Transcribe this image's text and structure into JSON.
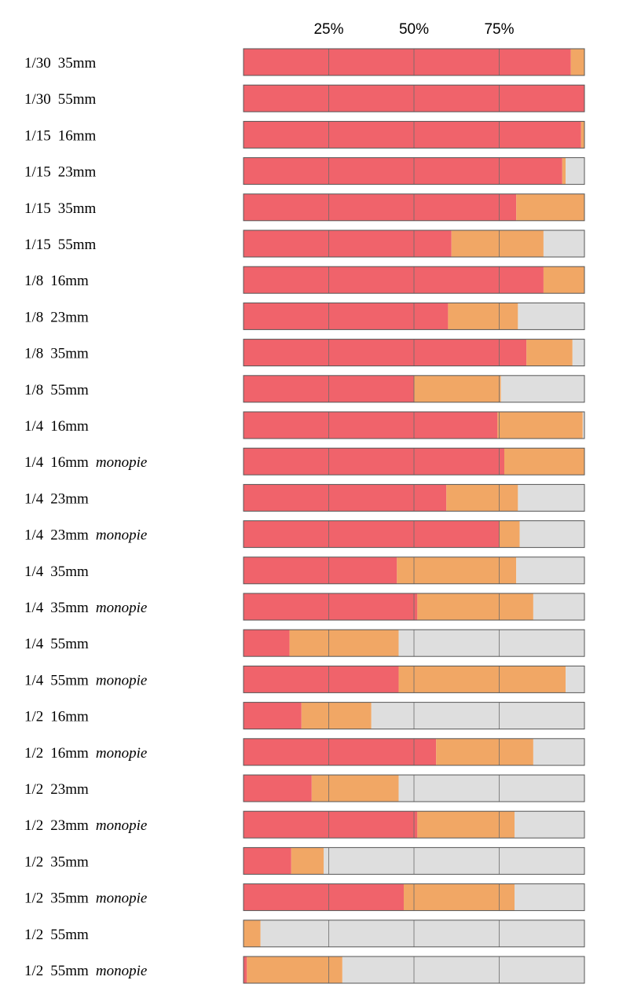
{
  "chart_data": {
    "type": "bar",
    "orientation": "horizontal",
    "stacked": true,
    "normalized_percent": true,
    "title": "",
    "xlabel": "",
    "ylabel": "",
    "xlim": [
      0,
      100
    ],
    "ticks": [
      {
        "value": 25,
        "label": "25%"
      },
      {
        "value": 50,
        "label": "50%"
      },
      {
        "value": 75,
        "label": "75%"
      }
    ],
    "series_colors": [
      "#f0636b",
      "#f1a765",
      "#dedede"
    ],
    "categories": [
      {
        "shutter": "1/30",
        "lens": "35mm",
        "note": ""
      },
      {
        "shutter": "1/30",
        "lens": "55mm",
        "note": ""
      },
      {
        "shutter": "1/15",
        "lens": "16mm",
        "note": ""
      },
      {
        "shutter": "1/15",
        "lens": "23mm",
        "note": ""
      },
      {
        "shutter": "1/15",
        "lens": "35mm",
        "note": ""
      },
      {
        "shutter": "1/15",
        "lens": "55mm",
        "note": ""
      },
      {
        "shutter": "1/8",
        "lens": "16mm",
        "note": ""
      },
      {
        "shutter": "1/8",
        "lens": "23mm",
        "note": ""
      },
      {
        "shutter": "1/8",
        "lens": "35mm",
        "note": ""
      },
      {
        "shutter": "1/8",
        "lens": "55mm",
        "note": ""
      },
      {
        "shutter": "1/4",
        "lens": "16mm",
        "note": ""
      },
      {
        "shutter": "1/4",
        "lens": "16mm",
        "note": "monopie"
      },
      {
        "shutter": "1/4",
        "lens": "23mm",
        "note": ""
      },
      {
        "shutter": "1/4",
        "lens": "23mm",
        "note": "monopie"
      },
      {
        "shutter": "1/4",
        "lens": "35mm",
        "note": ""
      },
      {
        "shutter": "1/4",
        "lens": "35mm",
        "note": "monopie"
      },
      {
        "shutter": "1/4",
        "lens": "55mm",
        "note": ""
      },
      {
        "shutter": "1/4",
        "lens": "55mm",
        "note": "monopie"
      },
      {
        "shutter": "1/2",
        "lens": "16mm",
        "note": ""
      },
      {
        "shutter": "1/2",
        "lens": "16mm",
        "note": "monopie"
      },
      {
        "shutter": "1/2",
        "lens": "23mm",
        "note": ""
      },
      {
        "shutter": "1/2",
        "lens": "23mm",
        "note": "monopie"
      },
      {
        "shutter": "1/2",
        "lens": "35mm",
        "note": ""
      },
      {
        "shutter": "1/2",
        "lens": "35mm",
        "note": "monopie"
      },
      {
        "shutter": "1/2",
        "lens": "55mm",
        "note": ""
      },
      {
        "shutter": "1/2",
        "lens": "55mm",
        "note": "monopie"
      }
    ],
    "series": [
      {
        "name": "red",
        "values": [
          96,
          100,
          99,
          93.5,
          80,
          61,
          88,
          60,
          83,
          50,
          74.5,
          76.5,
          59.5,
          75,
          45,
          51,
          13.5,
          45.5,
          17,
          56.5,
          20,
          51,
          14,
          47,
          0,
          1
        ]
      },
      {
        "name": "orange",
        "values": [
          4,
          0,
          1,
          1,
          20,
          27,
          12,
          20.5,
          13.5,
          25.5,
          25,
          23.5,
          21,
          6,
          35,
          34,
          32,
          49,
          20.5,
          28.5,
          25.5,
          28.5,
          9.5,
          32.5,
          5,
          28
        ]
      },
      {
        "name": "gray",
        "values": [
          0,
          0,
          0,
          5.5,
          0,
          12,
          0,
          19.5,
          3.5,
          24.5,
          0.5,
          0,
          19.5,
          19,
          20,
          15,
          54.5,
          5.5,
          62.5,
          15,
          54.5,
          20.5,
          76.5,
          20.5,
          95,
          71
        ]
      }
    ]
  }
}
